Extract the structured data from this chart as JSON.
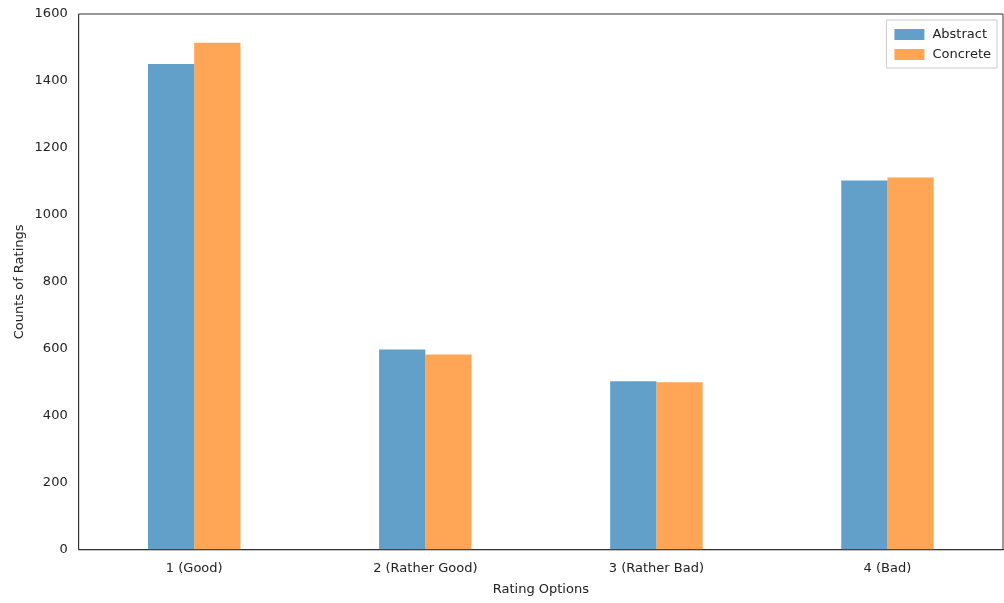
{
  "chart_data": {
    "type": "bar",
    "xlabel": "Rating Options",
    "ylabel": "Counts of Ratings",
    "categories": [
      "1 (Good)",
      "2 (Rather Good)",
      "3 (Rather Bad)",
      "4 (Bad)"
    ],
    "series": [
      {
        "name": "Abstract",
        "color": "#62a0ca",
        "values": [
          1451,
          598,
          503,
          1103
        ]
      },
      {
        "name": "Concrete",
        "color": "#ffa556",
        "values": [
          1514,
          583,
          500,
          1112
        ]
      }
    ],
    "ylim": [
      0,
      1600
    ],
    "yticks": [
      0,
      200,
      400,
      600,
      800,
      1000,
      1200,
      1400,
      1600
    ],
    "grid": false,
    "legend": "top right"
  }
}
